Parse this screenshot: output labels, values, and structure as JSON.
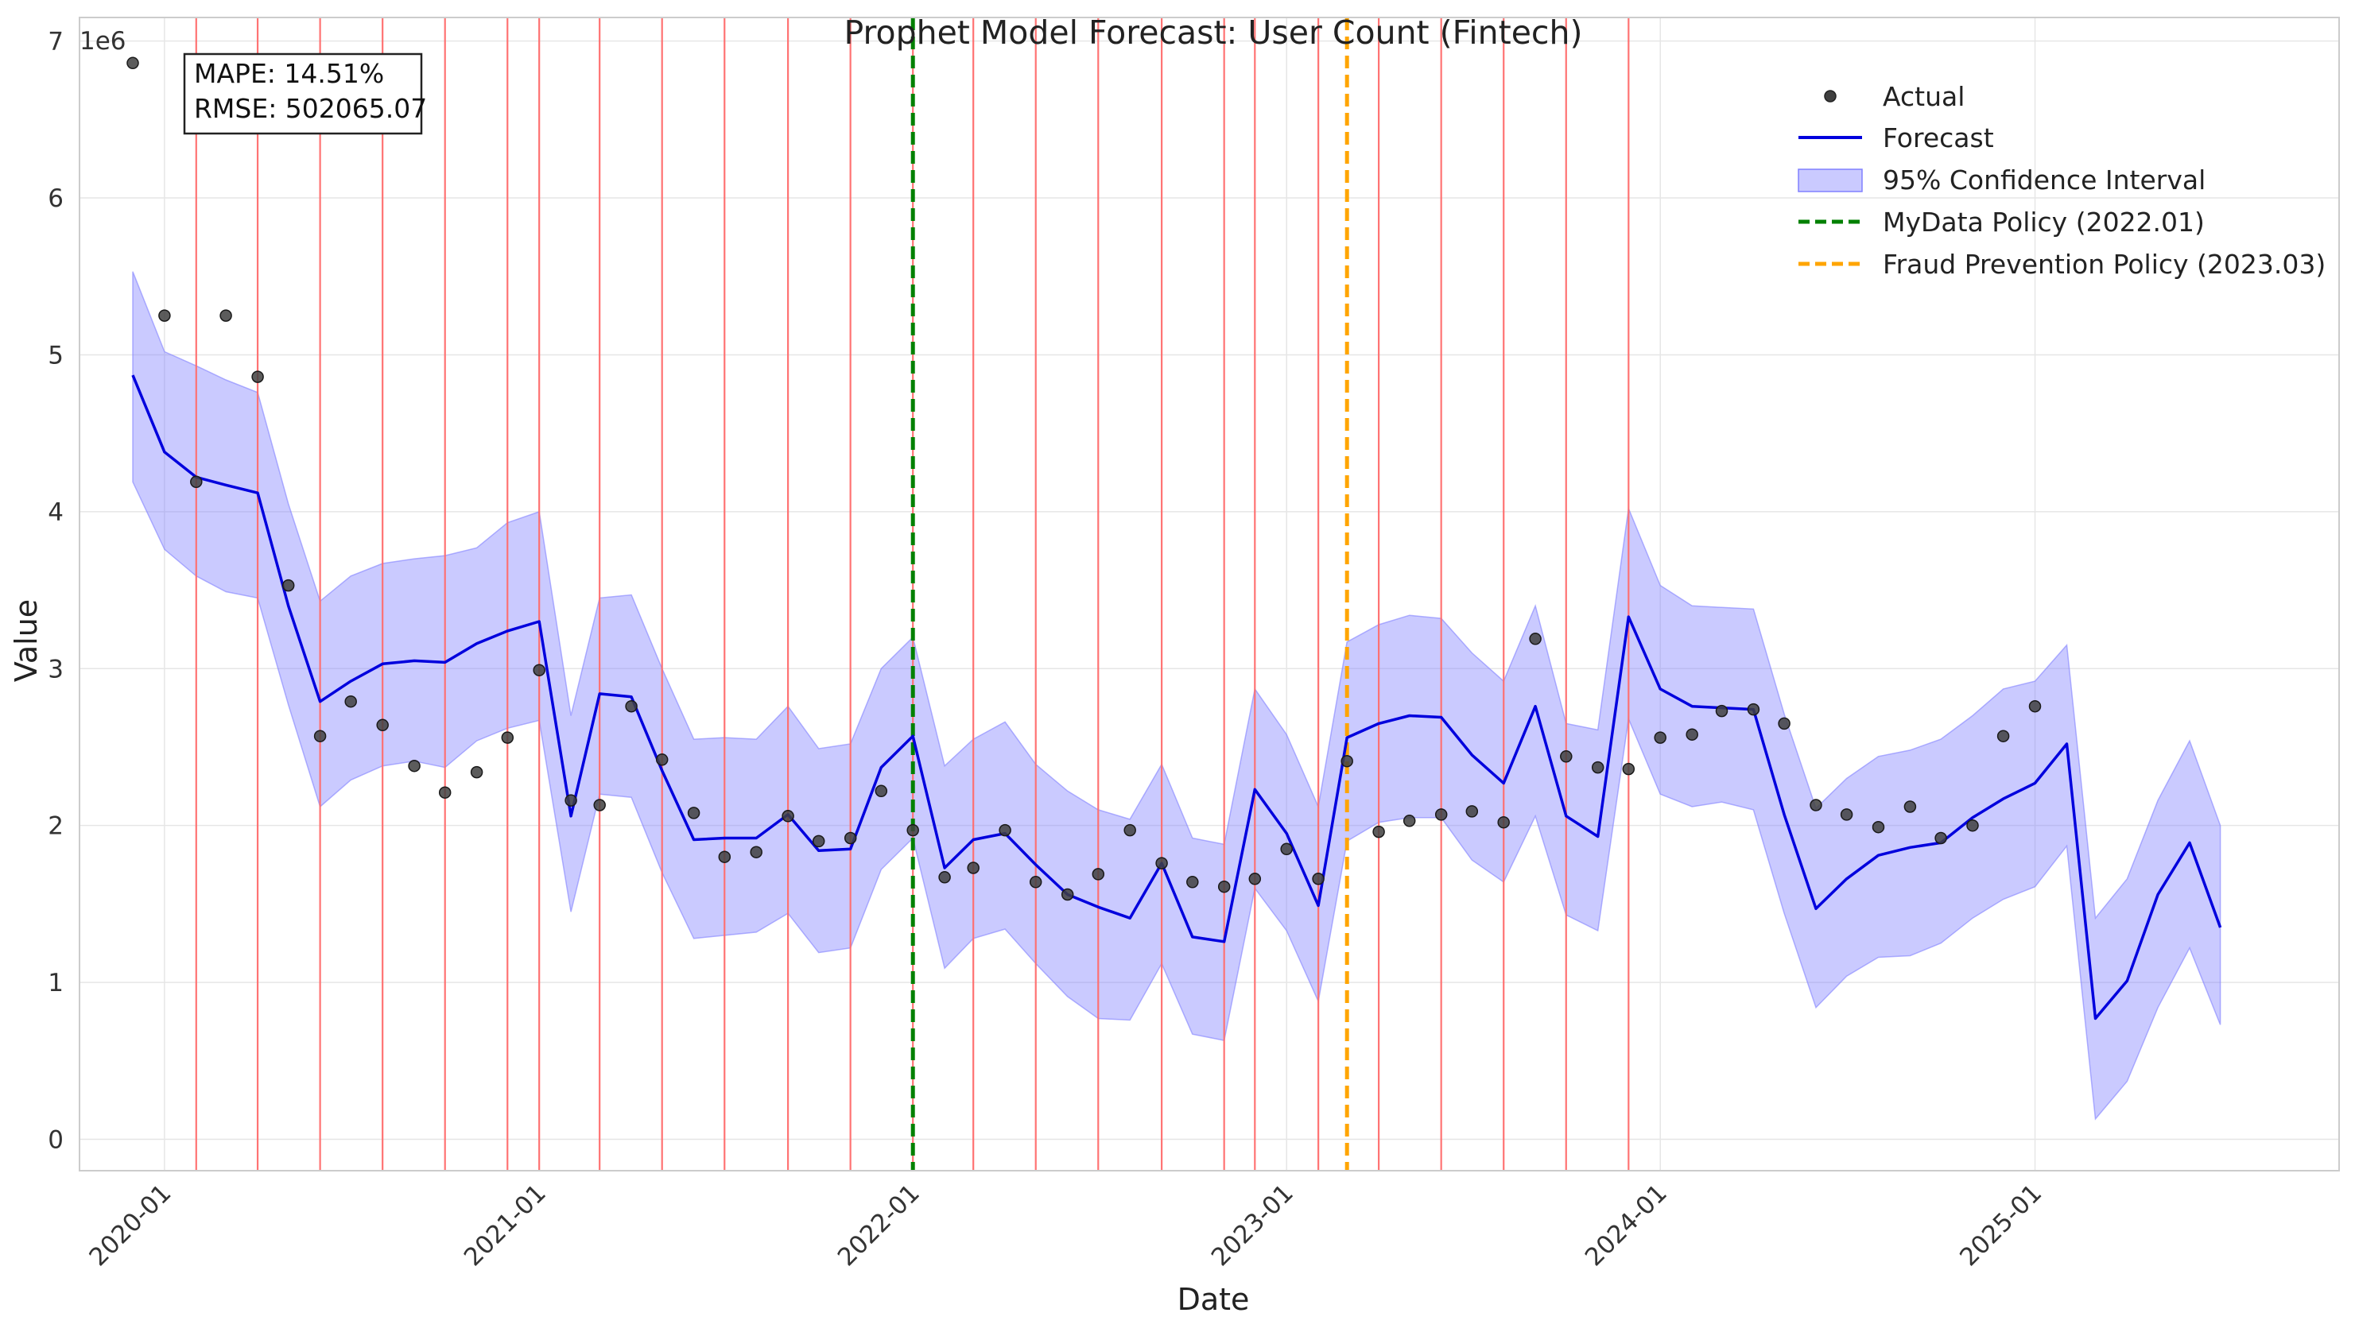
{
  "chart_data": {
    "type": "line",
    "title": "Prophet Model Forecast: User Count (Fintech)",
    "xlabel": "Date",
    "ylabel": "Value",
    "y_scale_label": "1e6",
    "ylim": [
      -0.2,
      7.15
    ],
    "xlim": [
      "2019-10-10",
      "2025-10-25"
    ],
    "yticks": [
      0,
      1,
      2,
      3,
      4,
      5,
      6,
      7
    ],
    "xticks": [
      {
        "date": "2020-01-01",
        "label": "2020-01"
      },
      {
        "date": "2021-01-01",
        "label": "2021-01"
      },
      {
        "date": "2022-01-01",
        "label": "2022-01"
      },
      {
        "date": "2023-01-01",
        "label": "2023-01"
      },
      {
        "date": "2024-01-01",
        "label": "2024-01"
      },
      {
        "date": "2025-01-01",
        "label": "2025-01"
      }
    ],
    "grid": true,
    "legend_position": "top-right",
    "legend": [
      {
        "key": "actual",
        "label": "Actual"
      },
      {
        "key": "forecast",
        "label": "Forecast"
      },
      {
        "key": "ci",
        "label": "95% Confidence Interval"
      },
      {
        "key": "policy1",
        "label": "MyData Policy (2022.01)"
      },
      {
        "key": "policy2",
        "label": "Fraud Prevention Policy (2023.03)"
      }
    ],
    "stats": {
      "mape": "MAPE: 14.51%",
      "rmse": "RMSE: 502065.07"
    },
    "colors": {
      "actual": "#404040",
      "forecast": "#0000dd",
      "ci_fill": "#8080ff",
      "policy1": "#008000",
      "policy2": "#ffa500",
      "anomaly": "#ff6b6b",
      "grid": "#e6e6e6",
      "frame": "#cccccc"
    },
    "policy_lines": [
      {
        "key": "policy1",
        "date": "2022-01-01"
      },
      {
        "key": "policy2",
        "date": "2023-03-01"
      }
    ],
    "anomaly_dates": [
      "2020-02",
      "2020-04",
      "2020-06",
      "2020-08",
      "2020-10",
      "2020-12",
      "2021-01",
      "2021-03",
      "2021-05",
      "2021-07",
      "2021-09",
      "2021-11",
      "2022-01",
      "2022-03",
      "2022-05",
      "2022-07",
      "2022-09",
      "2022-11",
      "2022-12",
      "2023-02",
      "2023-04",
      "2023-06",
      "2023-08",
      "2023-10",
      "2023-12"
    ],
    "series": [
      {
        "name": "Actual",
        "points": [
          [
            "2019-12-01",
            6.86
          ],
          [
            "2020-01-01",
            5.25
          ],
          [
            "2020-02-01",
            4.19
          ],
          [
            "2020-03-01",
            5.25
          ],
          [
            "2020-04-01",
            4.86
          ],
          [
            "2020-05-01",
            3.53
          ],
          [
            "2020-06-01",
            2.57
          ],
          [
            "2020-07-01",
            2.79
          ],
          [
            "2020-08-01",
            2.64
          ],
          [
            "2020-09-01",
            2.38
          ],
          [
            "2020-10-01",
            2.21
          ],
          [
            "2020-11-01",
            2.34
          ],
          [
            "2020-12-01",
            2.56
          ],
          [
            "2021-01-01",
            2.99
          ],
          [
            "2021-02-01",
            2.16
          ],
          [
            "2021-03-01",
            2.13
          ],
          [
            "2021-04-01",
            2.76
          ],
          [
            "2021-05-01",
            2.42
          ],
          [
            "2021-06-01",
            2.08
          ],
          [
            "2021-07-01",
            1.8
          ],
          [
            "2021-08-01",
            1.83
          ],
          [
            "2021-09-01",
            2.06
          ],
          [
            "2021-10-01",
            1.9
          ],
          [
            "2021-11-01",
            1.92
          ],
          [
            "2021-12-01",
            2.22
          ],
          [
            "2022-01-01",
            1.97
          ],
          [
            "2022-02-01",
            1.67
          ],
          [
            "2022-03-01",
            1.73
          ],
          [
            "2022-04-01",
            1.97
          ],
          [
            "2022-05-01",
            1.64
          ],
          [
            "2022-06-01",
            1.56
          ],
          [
            "2022-07-01",
            1.69
          ],
          [
            "2022-08-01",
            1.97
          ],
          [
            "2022-09-01",
            1.76
          ],
          [
            "2022-10-01",
            1.64
          ],
          [
            "2022-11-01",
            1.61
          ],
          [
            "2022-12-01",
            1.66
          ],
          [
            "2023-01-01",
            1.85
          ],
          [
            "2023-02-01",
            1.66
          ],
          [
            "2023-03-01",
            2.41
          ],
          [
            "2023-04-01",
            1.96
          ],
          [
            "2023-05-01",
            2.03
          ],
          [
            "2023-06-01",
            2.07
          ],
          [
            "2023-07-01",
            2.09
          ],
          [
            "2023-08-01",
            2.02
          ],
          [
            "2023-09-01",
            3.19
          ],
          [
            "2023-10-01",
            2.44
          ],
          [
            "2023-11-01",
            2.37
          ],
          [
            "2023-12-01",
            2.36
          ],
          [
            "2024-01-01",
            2.56
          ],
          [
            "2024-02-01",
            2.58
          ],
          [
            "2024-03-01",
            2.73
          ],
          [
            "2024-04-01",
            2.74
          ],
          [
            "2024-05-01",
            2.65
          ],
          [
            "2024-06-01",
            2.13
          ],
          [
            "2024-07-01",
            2.07
          ],
          [
            "2024-08-01",
            1.99
          ],
          [
            "2024-09-01",
            2.12
          ],
          [
            "2024-10-01",
            1.92
          ],
          [
            "2024-11-01",
            2.0
          ],
          [
            "2024-12-01",
            2.57
          ],
          [
            "2025-01-01",
            2.76
          ]
        ]
      },
      {
        "name": "Forecast",
        "points": [
          [
            "2019-12-01",
            4.87
          ],
          [
            "2020-01-01",
            4.38
          ],
          [
            "2020-02-01",
            4.22
          ],
          [
            "2020-03-01",
            4.17
          ],
          [
            "2020-04-01",
            4.12
          ],
          [
            "2020-05-01",
            3.4
          ],
          [
            "2020-06-01",
            2.79
          ],
          [
            "2020-07-01",
            2.92
          ],
          [
            "2020-08-01",
            3.03
          ],
          [
            "2020-09-01",
            3.05
          ],
          [
            "2020-10-01",
            3.04
          ],
          [
            "2020-11-01",
            3.16
          ],
          [
            "2020-12-01",
            3.24
          ],
          [
            "2021-01-01",
            3.3
          ],
          [
            "2021-02-01",
            2.06
          ],
          [
            "2021-03-01",
            2.84
          ],
          [
            "2021-04-01",
            2.82
          ],
          [
            "2021-05-01",
            2.35
          ],
          [
            "2021-06-01",
            1.91
          ],
          [
            "2021-07-01",
            1.92
          ],
          [
            "2021-08-01",
            1.92
          ],
          [
            "2021-09-01",
            2.07
          ],
          [
            "2021-10-01",
            1.84
          ],
          [
            "2021-11-01",
            1.85
          ],
          [
            "2021-12-01",
            2.37
          ],
          [
            "2022-01-01",
            2.57
          ],
          [
            "2022-02-01",
            1.73
          ],
          [
            "2022-03-01",
            1.91
          ],
          [
            "2022-04-01",
            1.95
          ],
          [
            "2022-05-01",
            1.75
          ],
          [
            "2022-06-01",
            1.56
          ],
          [
            "2022-07-01",
            1.48
          ],
          [
            "2022-08-01",
            1.41
          ],
          [
            "2022-09-01",
            1.76
          ],
          [
            "2022-10-01",
            1.29
          ],
          [
            "2022-11-01",
            1.26
          ],
          [
            "2022-12-01",
            2.23
          ],
          [
            "2023-01-01",
            1.95
          ],
          [
            "2023-02-01",
            1.49
          ],
          [
            "2023-03-01",
            2.56
          ],
          [
            "2023-04-01",
            2.65
          ],
          [
            "2023-05-01",
            2.7
          ],
          [
            "2023-06-01",
            2.69
          ],
          [
            "2023-07-01",
            2.45
          ],
          [
            "2023-08-01",
            2.27
          ],
          [
            "2023-09-01",
            2.76
          ],
          [
            "2023-10-01",
            2.06
          ],
          [
            "2023-11-01",
            1.93
          ],
          [
            "2023-12-01",
            3.33
          ],
          [
            "2024-01-01",
            2.87
          ],
          [
            "2024-02-01",
            2.76
          ],
          [
            "2024-03-01",
            2.75
          ],
          [
            "2024-04-01",
            2.74
          ],
          [
            "2024-05-01",
            2.07
          ],
          [
            "2024-06-01",
            1.47
          ],
          [
            "2024-07-01",
            1.66
          ],
          [
            "2024-08-01",
            1.81
          ],
          [
            "2024-09-01",
            1.86
          ],
          [
            "2024-10-01",
            1.89
          ],
          [
            "2024-11-01",
            2.05
          ],
          [
            "2024-12-01",
            2.17
          ],
          [
            "2025-01-01",
            2.27
          ],
          [
            "2025-02-01",
            2.52
          ],
          [
            "2025-03-01",
            0.77
          ],
          [
            "2025-04-01",
            1.01
          ],
          [
            "2025-05-01",
            1.56
          ],
          [
            "2025-06-01",
            1.89
          ],
          [
            "2025-07-01",
            1.35
          ]
        ]
      },
      {
        "name": "95% Confidence Interval",
        "dates": [
          "2019-12-01",
          "2020-01-01",
          "2020-02-01",
          "2020-03-01",
          "2020-04-01",
          "2020-05-01",
          "2020-06-01",
          "2020-07-01",
          "2020-08-01",
          "2020-09-01",
          "2020-10-01",
          "2020-11-01",
          "2020-12-01",
          "2021-01-01",
          "2021-02-01",
          "2021-03-01",
          "2021-04-01",
          "2021-05-01",
          "2021-06-01",
          "2021-07-01",
          "2021-08-01",
          "2021-09-01",
          "2021-10-01",
          "2021-11-01",
          "2021-12-01",
          "2022-01-01",
          "2022-02-01",
          "2022-03-01",
          "2022-04-01",
          "2022-05-01",
          "2022-06-01",
          "2022-07-01",
          "2022-08-01",
          "2022-09-01",
          "2022-10-01",
          "2022-11-01",
          "2022-12-01",
          "2023-01-01",
          "2023-02-01",
          "2023-03-01",
          "2023-04-01",
          "2023-05-01",
          "2023-06-01",
          "2023-07-01",
          "2023-08-01",
          "2023-09-01",
          "2023-10-01",
          "2023-11-01",
          "2023-12-01",
          "2024-01-01",
          "2024-02-01",
          "2024-03-01",
          "2024-04-01",
          "2024-05-01",
          "2024-06-01",
          "2024-07-01",
          "2024-08-01",
          "2024-09-01",
          "2024-10-01",
          "2024-11-01",
          "2024-12-01",
          "2025-01-01",
          "2025-02-01",
          "2025-03-01",
          "2025-04-01",
          "2025-05-01",
          "2025-06-01",
          "2025-07-01"
        ],
        "upper": [
          5.53,
          5.02,
          4.93,
          4.84,
          4.76,
          4.05,
          3.43,
          3.59,
          3.67,
          3.7,
          3.72,
          3.77,
          3.93,
          4.0,
          2.7,
          3.45,
          3.47,
          3.0,
          2.55,
          2.56,
          2.55,
          2.76,
          2.49,
          2.52,
          3.0,
          3.2,
          2.38,
          2.55,
          2.66,
          2.39,
          2.22,
          2.1,
          2.04,
          2.39,
          1.92,
          1.88,
          2.87,
          2.58,
          2.12,
          3.17,
          3.28,
          3.34,
          3.32,
          3.1,
          2.92,
          3.4,
          2.65,
          2.61,
          4.02,
          3.53,
          3.4,
          3.39,
          3.38,
          2.71,
          2.11,
          2.3,
          2.44,
          2.48,
          2.55,
          2.7,
          2.87,
          2.92,
          3.15,
          1.41,
          1.66,
          2.16,
          2.54,
          2.0
        ],
        "lower": [
          4.19,
          3.76,
          3.59,
          3.49,
          3.45,
          2.77,
          2.12,
          2.29,
          2.38,
          2.41,
          2.37,
          2.54,
          2.62,
          2.67,
          1.45,
          2.2,
          2.18,
          1.7,
          1.28,
          1.3,
          1.32,
          1.44,
          1.19,
          1.22,
          1.72,
          1.92,
          1.09,
          1.28,
          1.34,
          1.12,
          0.91,
          0.77,
          0.76,
          1.12,
          0.67,
          0.63,
          1.6,
          1.33,
          0.88,
          1.9,
          2.02,
          2.05,
          2.05,
          1.78,
          1.64,
          2.06,
          1.43,
          1.33,
          2.68,
          2.2,
          2.12,
          2.15,
          2.1,
          1.44,
          0.84,
          1.04,
          1.16,
          1.17,
          1.25,
          1.41,
          1.53,
          1.61,
          1.87,
          0.13,
          0.37,
          0.84,
          1.22,
          0.73
        ]
      }
    ]
  }
}
